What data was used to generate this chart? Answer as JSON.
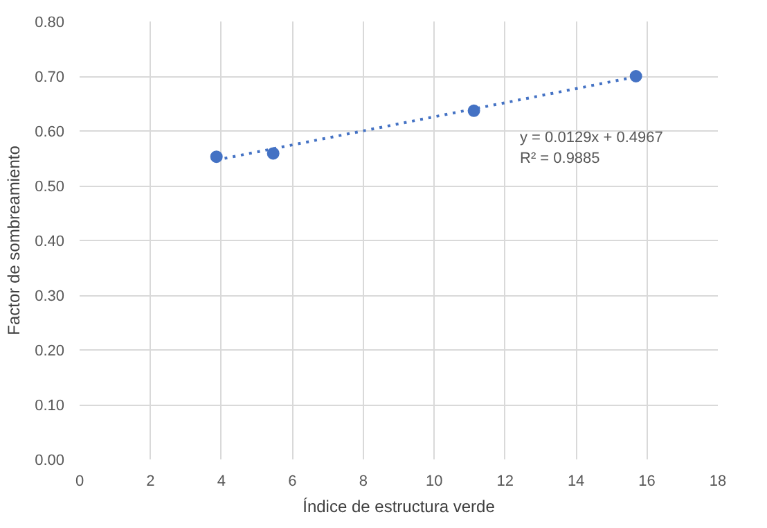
{
  "chart_data": {
    "type": "scatter",
    "xlabel": "Índice de estructura verde",
    "ylabel": "Factor de sombreamiento",
    "x": [
      3.86,
      5.46,
      11.12,
      15.69
    ],
    "series": [
      {
        "color": "#4472c4",
        "values": [
          0.553,
          0.559,
          0.637,
          0.7
        ]
      },
      {
        "type": "line",
        "color": "#4472c4",
        "x": [
          3.86,
          15.69
        ],
        "values": [
          0.547,
          0.699
        ],
        "line_style": "dotted",
        "marker": "none"
      }
    ],
    "annotations": [
      "y = 0.0129x + 0.4967",
      "R² = 0.9885"
    ],
    "marker": "circle",
    "grid": true,
    "xlim": [
      0,
      18
    ],
    "xticks": [
      0,
      2,
      4,
      6,
      8,
      10,
      12,
      14,
      16,
      18
    ],
    "ylim": [
      0,
      0.8
    ],
    "yticks": [
      {
        "value": 0,
        "label": "0.00"
      },
      {
        "value": 0.1,
        "label": "0.10"
      },
      {
        "value": 0.2,
        "label": "0.20"
      },
      {
        "value": 0.3,
        "label": "0.30"
      },
      {
        "value": 0.4,
        "label": "0.40"
      },
      {
        "value": 0.5,
        "label": "0.50"
      },
      {
        "value": 0.6,
        "label": "0.60"
      },
      {
        "value": 0.7,
        "label": "0.70"
      },
      {
        "value": 0.8,
        "label": "0.80"
      }
    ]
  }
}
